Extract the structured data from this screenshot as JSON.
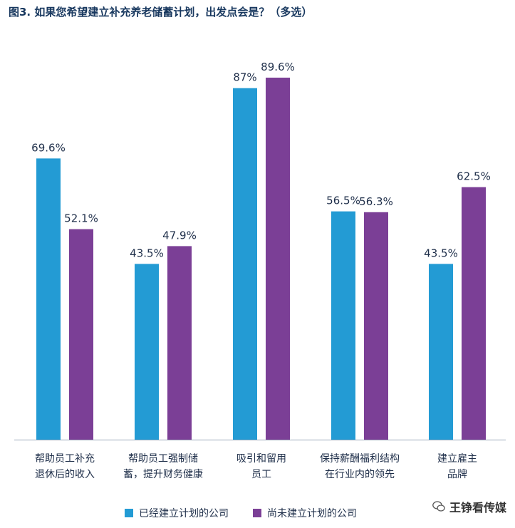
{
  "chart_data": {
    "type": "bar",
    "title": "图3. 如果您希望建立补充养老储蓄计划，出发点会是？（多选）",
    "categories": [
      [
        "帮助员工补充",
        "退休后的收入"
      ],
      [
        "帮助员工强制储",
        "蓄，提升财务健康"
      ],
      [
        "吸引和留用",
        "员工"
      ],
      [
        "保持薪酬福利结构",
        "在行业内的领先"
      ],
      [
        "建立雇主",
        "品牌"
      ]
    ],
    "series": [
      {
        "name": "已经建立计划的公司",
        "color": "#239bd4",
        "values": [
          69.6,
          43.5,
          87,
          56.5,
          43.5
        ],
        "labels": [
          "69.6%",
          "43.5%",
          "87%",
          "56.5%",
          "43.5%"
        ]
      },
      {
        "name": "尚未建立计划的公司",
        "color": "#7b3f96",
        "values": [
          52.1,
          47.9,
          89.6,
          56.3,
          62.5
        ],
        "labels": [
          "52.1%",
          "47.9%",
          "89.6%",
          "56.3%",
          "62.5%"
        ]
      }
    ],
    "ylim": [
      0,
      100
    ],
    "grid": false,
    "legend_position": "bottom"
  },
  "watermark": {
    "text": "王铮看传媒",
    "icon": "wechat-icon"
  }
}
